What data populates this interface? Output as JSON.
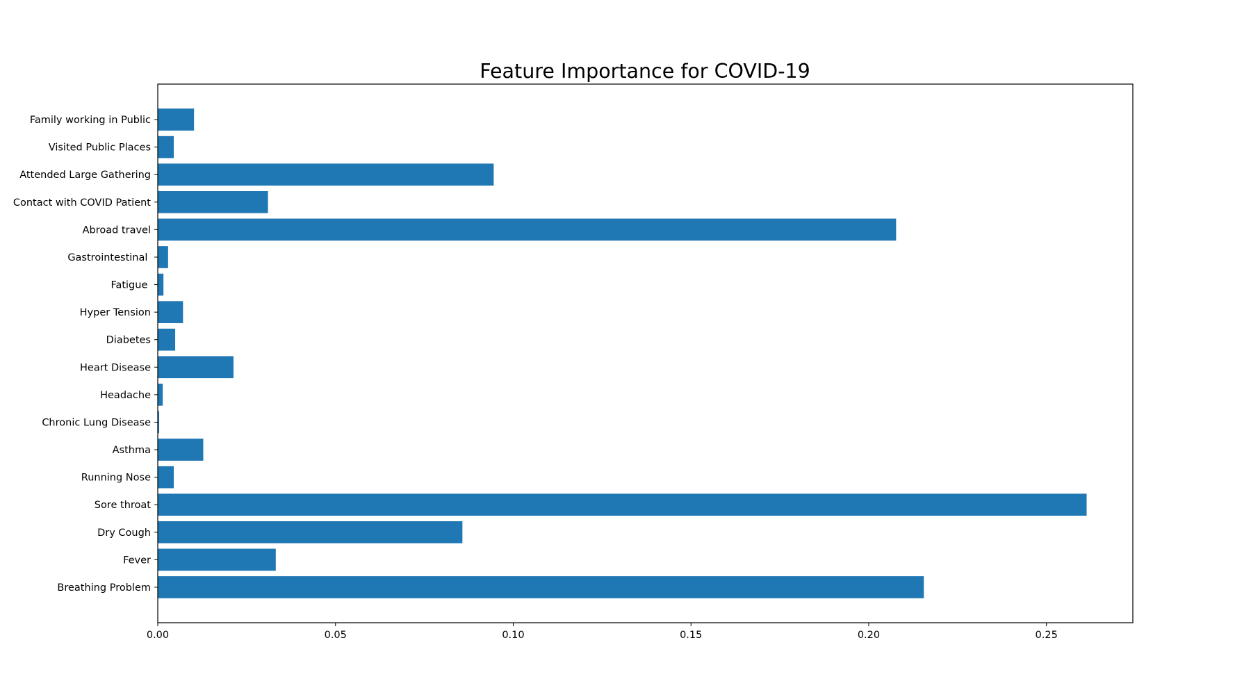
{
  "chart_data": {
    "type": "bar",
    "orientation": "horizontal",
    "title": "Feature Importance for COVID-19",
    "xlabel": "",
    "ylabel": "",
    "categories": [
      "Breathing Problem",
      "Fever",
      "Dry Cough",
      "Sore throat",
      "Running Nose",
      "Asthma",
      "Chronic Lung Disease",
      "Headache",
      "Heart Disease",
      "Diabetes",
      "Hyper Tension",
      "Fatigue ",
      "Gastrointestinal ",
      "Abroad travel",
      "Contact with COVID Patient",
      "Attended Large Gathering",
      "Visited Public Places",
      "Family working in Public"
    ],
    "values": [
      0.2155,
      0.0332,
      0.0857,
      0.2613,
      0.0045,
      0.0128,
      0.0004,
      0.0014,
      0.0213,
      0.0049,
      0.0071,
      0.0016,
      0.0029,
      0.2077,
      0.031,
      0.0945,
      0.0045,
      0.0102
    ],
    "xticks": [
      0.0,
      0.05,
      0.1,
      0.15,
      0.2,
      0.25
    ],
    "xtick_labels": [
      "0.00",
      "0.05",
      "0.10",
      "0.15",
      "0.20",
      "0.25"
    ],
    "xlim": [
      0,
      0.2743
    ],
    "grid": false,
    "bar_color": "#1f77b4"
  }
}
